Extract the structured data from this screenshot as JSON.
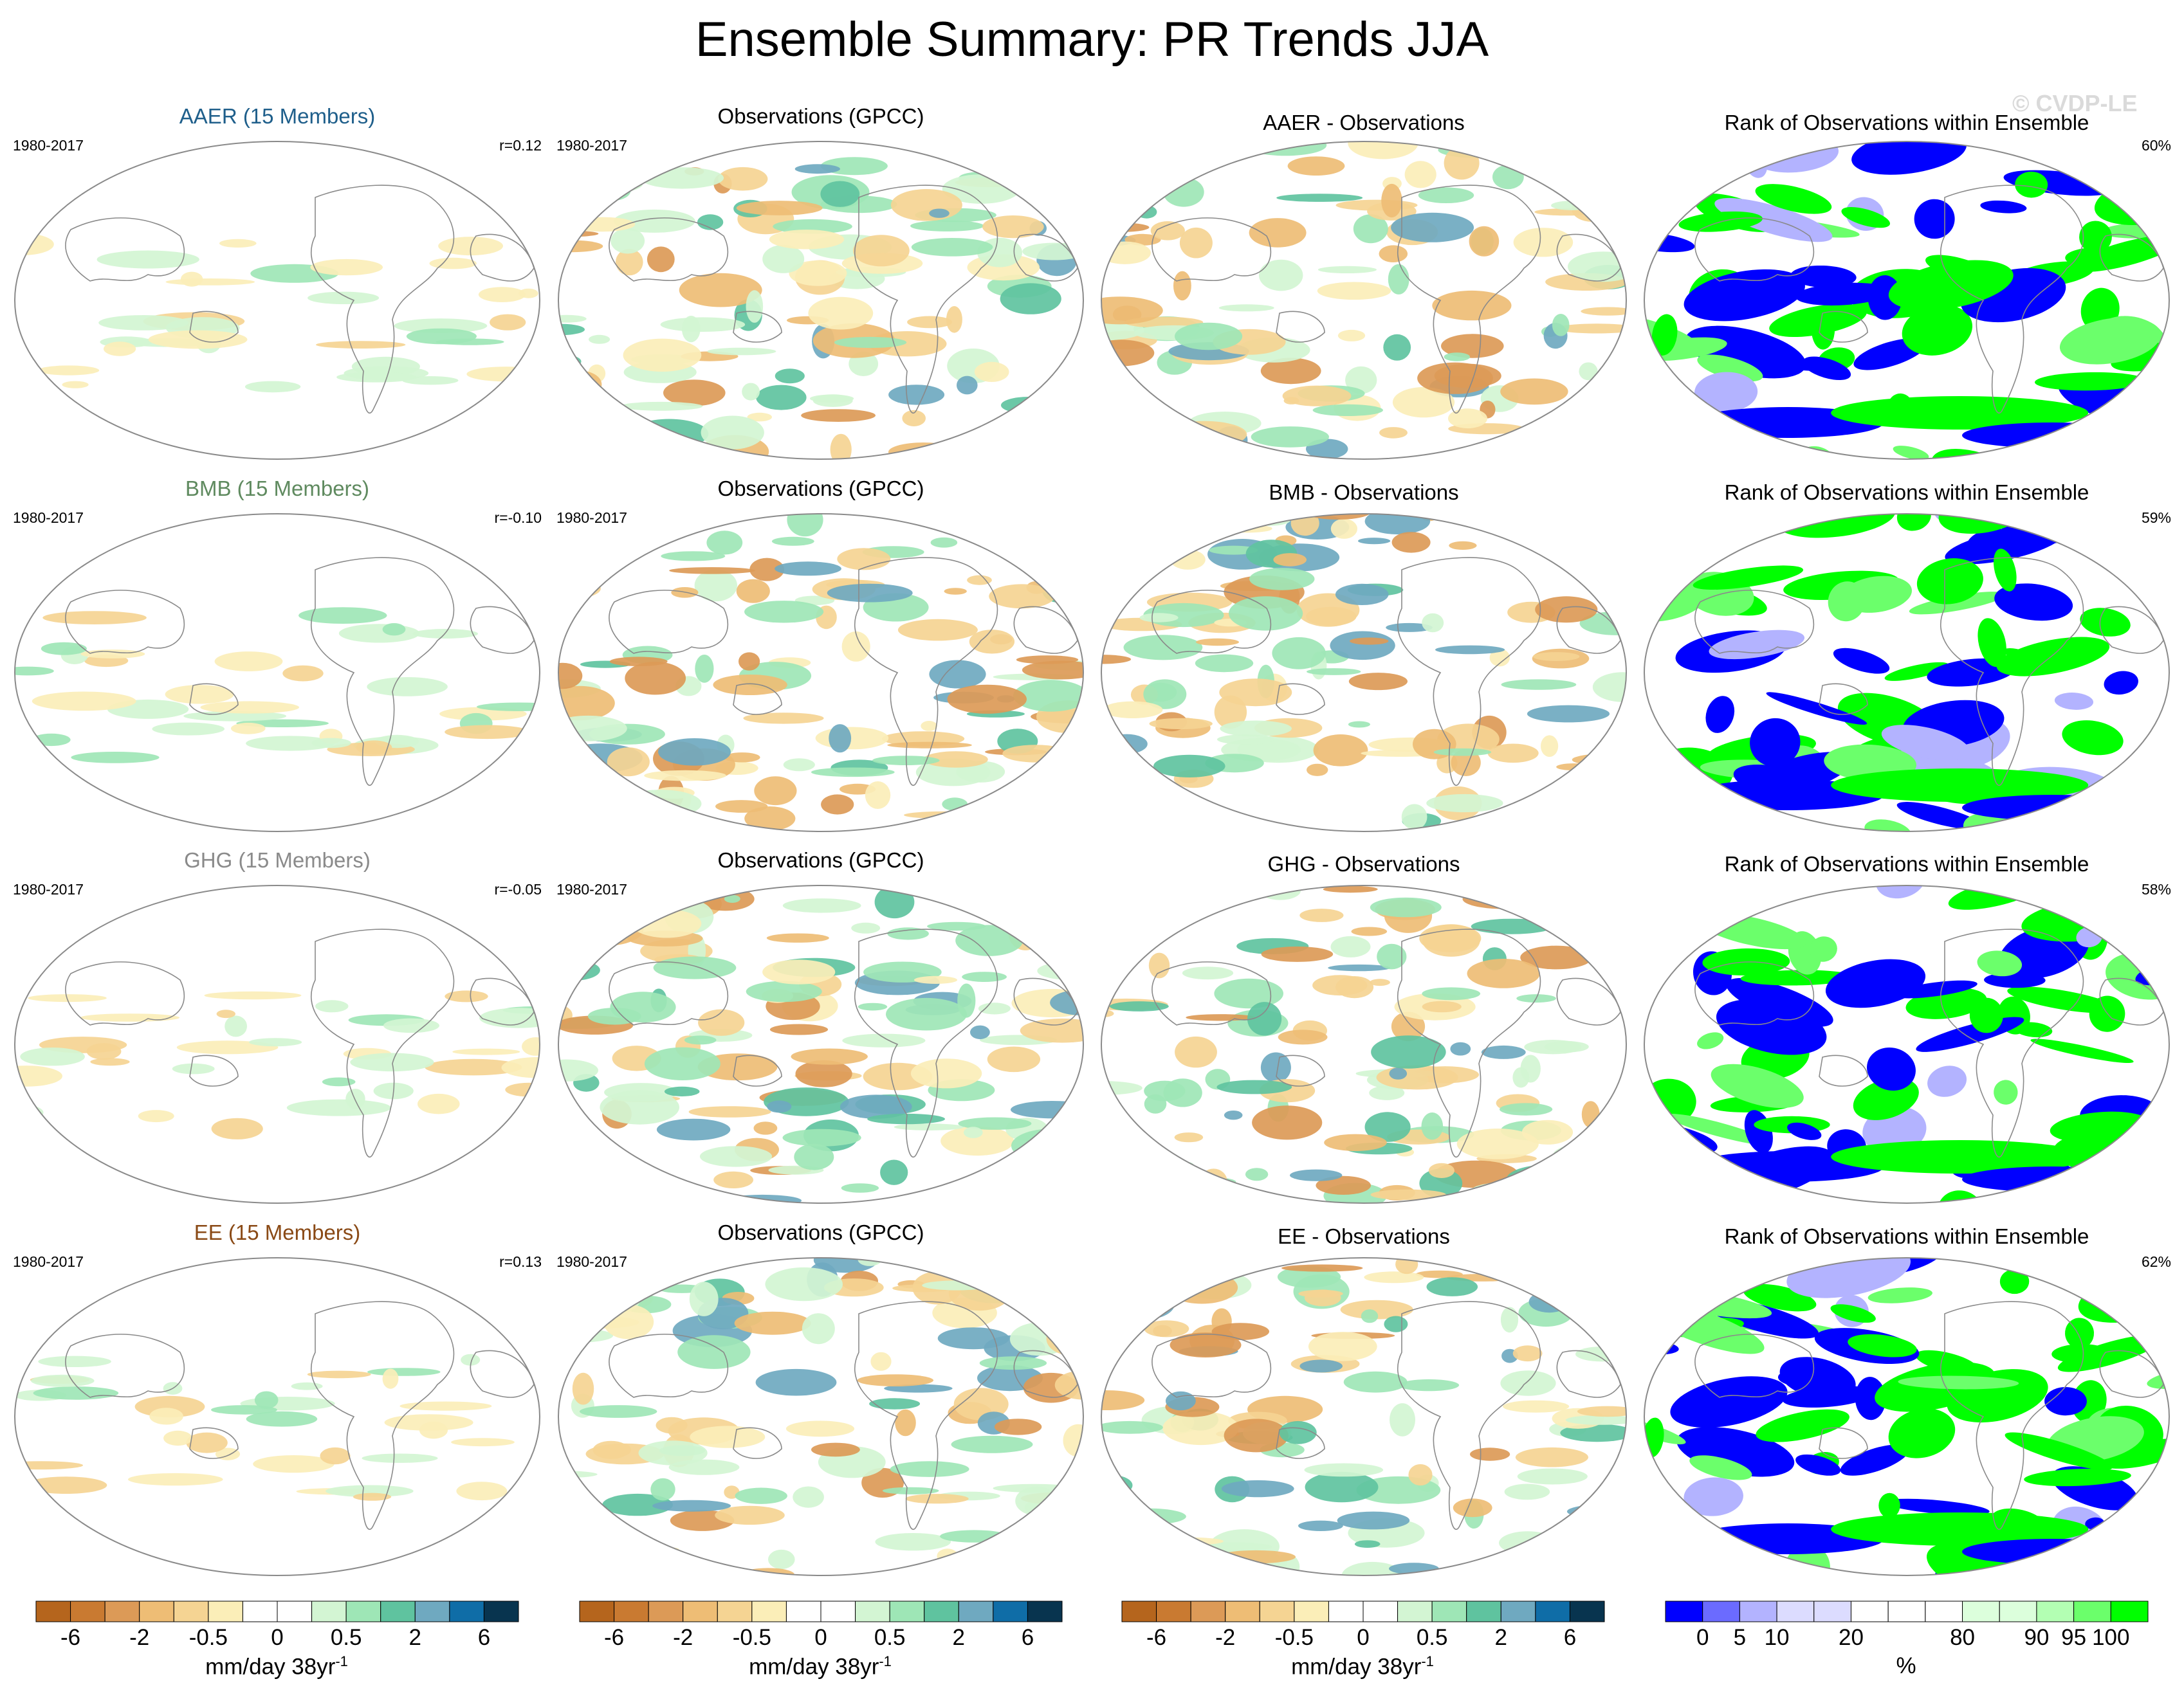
{
  "title": "Ensemble Summary: PR Trends JJA",
  "watermark": "© CVDP-LE",
  "period": "1980-2017",
  "rows": [
    {
      "model_title": "AAER (15 Members)",
      "model_color": "#1f5f8b",
      "pattern_corr": "r=0.12",
      "obs_title": "Observations (GPCC)",
      "diff_title": "AAER - Observations",
      "rank_title": "Rank of Observations within Ensemble",
      "rank_pct": "60%"
    },
    {
      "model_title": "BMB (15 Members)",
      "model_color": "#5f8a5f",
      "pattern_corr": "r=-0.10",
      "obs_title": "Observations (GPCC)",
      "diff_title": "BMB - Observations",
      "rank_title": "Rank of Observations within Ensemble",
      "rank_pct": "59%"
    },
    {
      "model_title": "GHG (15 Members)",
      "model_color": "#8a8a8a",
      "pattern_corr": "r=-0.05",
      "obs_title": "Observations (GPCC)",
      "diff_title": "GHG - Observations",
      "rank_title": "Rank of Observations within Ensemble",
      "rank_pct": "58%"
    },
    {
      "model_title": "EE (15 Members)",
      "model_color": "#8a4a16",
      "pattern_corr": "r=0.13",
      "obs_title": "Observations (GPCC)",
      "diff_title": "EE - Observations",
      "rank_title": "Rank of Observations within Ensemble",
      "rank_pct": "62%"
    }
  ],
  "trend_colorbar": {
    "colors": [
      "#b5651d",
      "#c97a31",
      "#dc9a57",
      "#eebd75",
      "#f5d493",
      "#fbeeb8",
      "#ffffff",
      "#ffffff",
      "#d3f5d3",
      "#9ee6b6",
      "#5fc39f",
      "#6fa9c0",
      "#0f6da7",
      "#08344f"
    ],
    "ticks": [
      "-6",
      "-2",
      "-0.5",
      "0",
      "0.5",
      "2",
      "6"
    ],
    "unit": "mm/day 38yr",
    "unit_sup": "-1"
  },
  "rank_colorbar": {
    "colors": [
      "#0000ff",
      "#6b6bff",
      "#b3b3ff",
      "#dcdcff",
      "#dcdcff",
      "#ffffff",
      "#ffffff",
      "#ffffff",
      "#dcffdc",
      "#dcffdc",
      "#b3ffb3",
      "#6bff6b",
      "#00ff00"
    ],
    "ticks": [
      "0",
      "5",
      "10",
      "20",
      "80",
      "90",
      "95",
      "100"
    ],
    "unit": "%"
  }
}
